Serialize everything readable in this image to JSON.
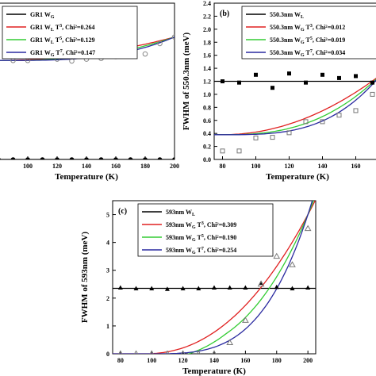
{
  "chart_data": [
    {
      "panel_label": "",
      "type": "line",
      "xlabel": "Temperature (K)",
      "ylabel": "",
      "xlim": [
        80,
        200
      ],
      "ylim": [
        0,
        6
      ],
      "x_ticks": [
        "100",
        "120",
        "140",
        "160",
        "180",
        "200"
      ],
      "y_ticks": [],
      "legend_position": "top-left",
      "legend": [
        {
          "text": "GR1 W",
          "sub": "G",
          "sup": "",
          "tail": ""
        },
        {
          "text": "GR1 W",
          "sub": "L",
          "mid": " T",
          "sup": "3",
          "tail": ", Chi²=0.264"
        },
        {
          "text": "GR1 W",
          "sub": "L",
          "mid": " T",
          "sup": "5",
          "tail": ", Chi²=0.129"
        },
        {
          "text": "GR1 W",
          "sub": "G",
          "mid": " T",
          "sup": "7",
          "tail": ", Chi²=0.147"
        }
      ],
      "colors": [
        "#000000",
        "#e02020",
        "#33cc33",
        "#2a2aa0"
      ],
      "flat_line": {
        "y": 0.0
      },
      "flat_points": {
        "x": [
          80,
          90,
          100,
          110,
          120,
          130,
          140,
          150,
          160,
          170,
          180,
          190,
          200
        ],
        "y": [
          0,
          0,
          0,
          0,
          0,
          0,
          0,
          0,
          0,
          0,
          0,
          0,
          0
        ]
      },
      "open_points": {
        "marker": "circle",
        "x": [
          90,
          100,
          120,
          130,
          140,
          150,
          160,
          170,
          180,
          190,
          200
        ],
        "y": [
          3.8,
          3.8,
          3.85,
          3.78,
          3.85,
          3.88,
          3.95,
          4.0,
          4.05,
          4.45,
          4.7
        ]
      },
      "curves": {
        "base": 3.8,
        "end": 4.7,
        "powers": [
          3,
          5,
          7
        ]
      }
    },
    {
      "panel_label": "(b)",
      "type": "line",
      "xlabel": "Temperature (K)",
      "ylabel": "FWHM of 550.3nm (meV)",
      "xlim": [
        75,
        175
      ],
      "ylim": [
        0,
        2.4
      ],
      "x_ticks": [
        "80",
        "100",
        "120",
        "140",
        "160"
      ],
      "y_ticks": [
        "0.0",
        "0.2",
        "0.4",
        "0.6",
        "0.8",
        "1.0",
        "1.2",
        "1.4",
        "1.6",
        "1.8",
        "2.0",
        "2.2",
        "2.4"
      ],
      "legend_position": "top-right",
      "legend": [
        {
          "text": "550.3nm W",
          "sub": "L",
          "sup": "",
          "tail": ""
        },
        {
          "text": "550.3nm W",
          "sub": "G",
          "mid": " T",
          "sup": "3",
          "tail": ", Chi²=0.012"
        },
        {
          "text": "550.3nm W",
          "sub": "G",
          "mid": " T",
          "sup": "5",
          "tail": ", Chi²=0.019"
        },
        {
          "text": "550.3nm W",
          "sub": "G",
          "mid": " T",
          "sup": "7",
          "tail": ", Chi²=0.034"
        }
      ],
      "colors": [
        "#000000",
        "#e02020",
        "#33cc33",
        "#2a2aa0"
      ],
      "flat_line": {
        "y": 1.2
      },
      "flat_points": {
        "marker": "square",
        "x": [
          80,
          90,
          100,
          110,
          120,
          130,
          140,
          150,
          160,
          170
        ],
        "y": [
          1.2,
          1.18,
          1.3,
          1.1,
          1.32,
          1.18,
          1.3,
          1.25,
          1.28,
          1.18
        ]
      },
      "open_points": {
        "marker": "square",
        "x": [
          80,
          90,
          100,
          110,
          120,
          130,
          140,
          150,
          160,
          170
        ],
        "y": [
          0.13,
          0.13,
          0.33,
          0.34,
          0.41,
          0.58,
          0.58,
          0.68,
          0.75,
          1.0
        ]
      },
      "curves": {
        "base": 0.38,
        "end": 1.3,
        "powers": [
          3,
          5,
          7
        ]
      }
    },
    {
      "panel_label": "(c)",
      "type": "line",
      "xlabel": "Temperature (K)",
      "ylabel": "FWHM of 593nm (meV)",
      "xlim": [
        75,
        205
      ],
      "ylim": [
        0,
        5.5
      ],
      "x_ticks": [
        "80",
        "100",
        "120",
        "140",
        "160",
        "180",
        "200"
      ],
      "y_ticks": [
        "0",
        "1",
        "2",
        "3",
        "4",
        "5"
      ],
      "legend_position": "top-left",
      "legend": [
        {
          "text": "593nm W",
          "sub": "L",
          "sup": "",
          "tail": ""
        },
        {
          "text": "593nm W",
          "sub": "G",
          "mid": " T",
          "sup": "3",
          "tail": ", Chi²=0.309"
        },
        {
          "text": "593nm W",
          "sub": "G",
          "mid": " T",
          "sup": "5",
          "tail": ", Chi²=0.190"
        },
        {
          "text": "593nm W",
          "sub": "G",
          "mid": " T",
          "sup": "7",
          "tail": ", Chi²=0.254"
        }
      ],
      "colors": [
        "#000000",
        "#e02020",
        "#33cc33",
        "#2a2aa0"
      ],
      "flat_line": {
        "y": 2.35
      },
      "flat_points": {
        "marker": "filled-triangle",
        "x": [
          80,
          90,
          100,
          110,
          120,
          130,
          140,
          150,
          160,
          170,
          180,
          190,
          200
        ],
        "y": [
          2.38,
          2.35,
          2.35,
          2.33,
          2.35,
          2.35,
          2.38,
          2.38,
          2.38,
          2.55,
          2.4,
          2.35,
          2.38
        ]
      },
      "open_points": {
        "marker": "triangle",
        "x": [
          80,
          90,
          100,
          110,
          120,
          130,
          140,
          150,
          160,
          170,
          180,
          190,
          200
        ],
        "y": [
          0.0,
          0.0,
          0.0,
          0.0,
          0.0,
          0.0,
          0.0,
          0.4,
          1.2,
          2.5,
          3.5,
          3.2,
          4.5
        ]
      },
      "curves": {
        "base": 0.0,
        "end": 5.0,
        "powers": [
          3,
          5,
          7
        ]
      }
    }
  ]
}
